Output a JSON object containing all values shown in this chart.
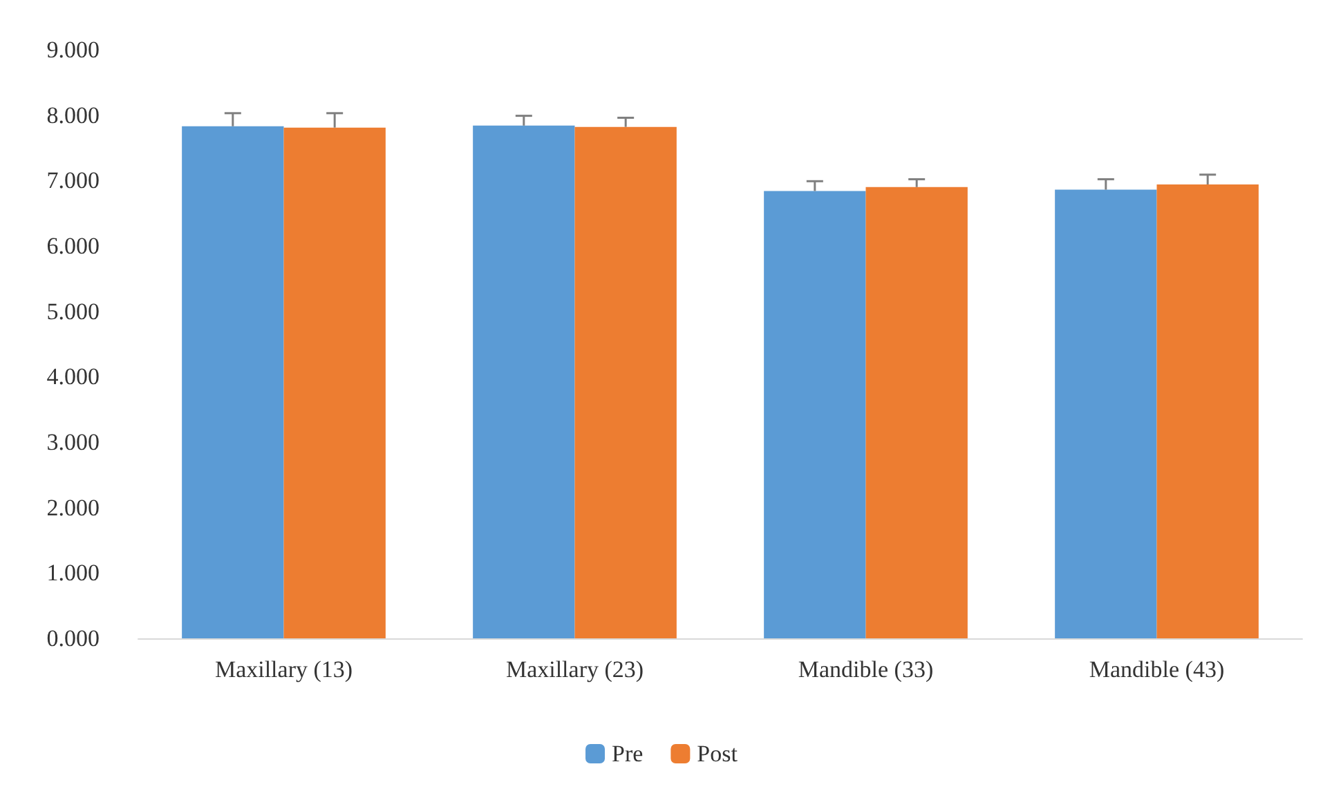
{
  "chart_data": {
    "type": "bar",
    "categories": [
      "Maxillary (13)",
      "Maxillary (23)",
      "Mandible (33)",
      "Mandible (43)"
    ],
    "series": [
      {
        "name": "Pre",
        "color": "#5b9bd5",
        "values": [
          7.83,
          7.84,
          6.84,
          6.86
        ],
        "errors": [
          0.2,
          0.15,
          0.15,
          0.16
        ]
      },
      {
        "name": "Post",
        "color": "#ed7d31",
        "values": [
          7.81,
          7.82,
          6.9,
          6.94
        ],
        "errors": [
          0.22,
          0.14,
          0.12,
          0.15
        ]
      }
    ],
    "ylim": [
      0,
      9
    ],
    "yticks": [
      {
        "value": 0,
        "label": "0.000"
      },
      {
        "value": 1,
        "label": "1.000"
      },
      {
        "value": 2,
        "label": "2.000"
      },
      {
        "value": 3,
        "label": "3.000"
      },
      {
        "value": 4,
        "label": "4.000"
      },
      {
        "value": 5,
        "label": "5.000"
      },
      {
        "value": 6,
        "label": "6.000"
      },
      {
        "value": 7,
        "label": "7.000"
      },
      {
        "value": 8,
        "label": "8.000"
      },
      {
        "value": 9,
        "label": "9.000"
      }
    ],
    "grid": false,
    "legend": "bottom"
  }
}
